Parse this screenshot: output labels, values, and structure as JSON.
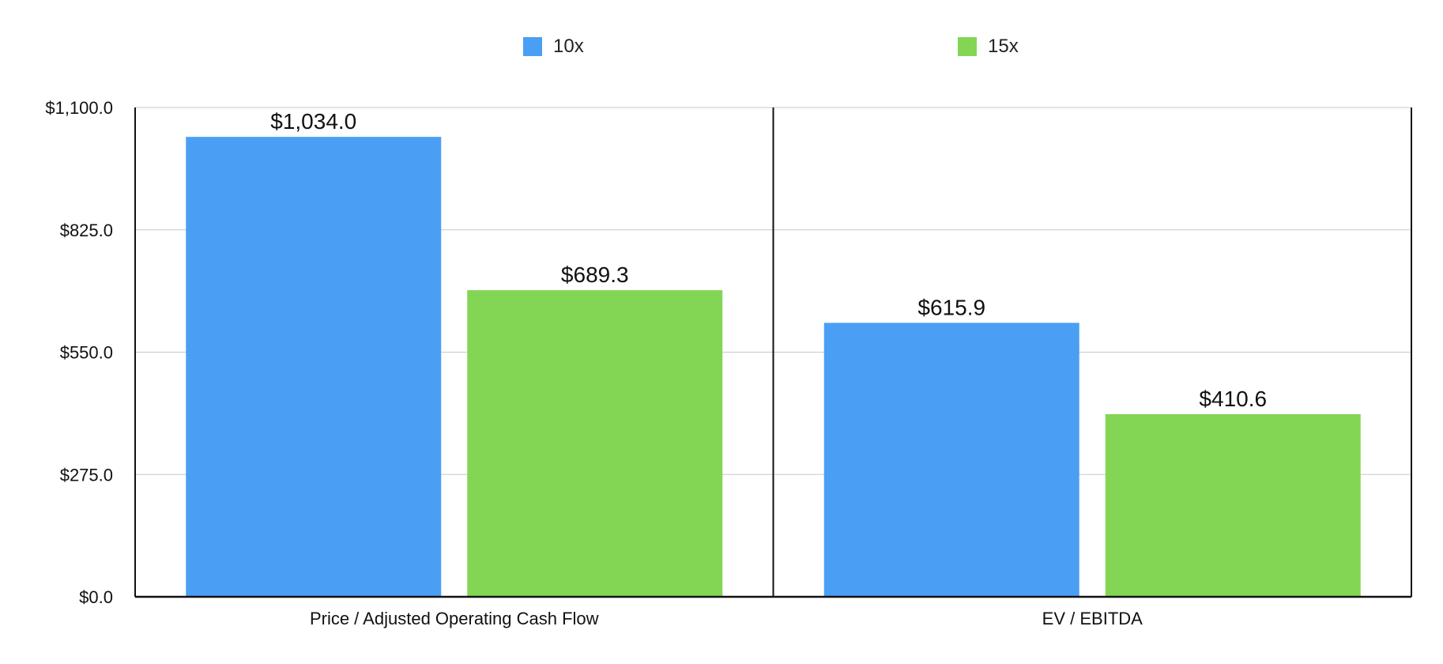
{
  "chart_data": {
    "type": "bar",
    "categories": [
      "Price / Adjusted Operating Cash Flow",
      "EV / EBITDA"
    ],
    "series": [
      {
        "name": "10x",
        "values": [
          1034.0,
          615.9
        ],
        "color": "#4a9ff5"
      },
      {
        "name": "15x",
        "values": [
          689.3,
          410.6
        ],
        "color": "#83d653"
      }
    ],
    "data_labels": [
      [
        "$1,034.0",
        "$615.9"
      ],
      [
        "$689.3",
        "$410.6"
      ]
    ],
    "y_ticks": [
      0,
      275,
      550,
      825,
      1100
    ],
    "y_tick_labels": [
      "$0.0",
      "$275.0",
      "$550.0",
      "$825.0",
      "$1,100.0"
    ],
    "ylim": [
      0,
      1100
    ],
    "grid": true,
    "legend_position": "top-center",
    "title": "",
    "xlabel": "",
    "ylabel": ""
  }
}
